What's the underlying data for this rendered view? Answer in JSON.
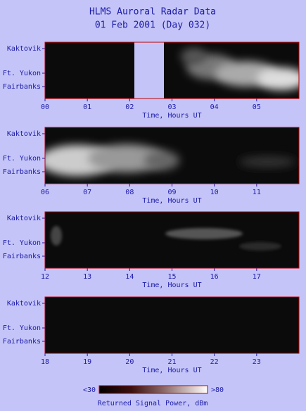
{
  "title": "HLMS Auroral Radar Data",
  "subtitle": "01 Feb 2001 (Day 032)",
  "chart_data": [
    {
      "type": "heatmap",
      "categories": [
        "Kaktovik",
        "Ft. Yukon",
        "Fairbanks"
      ],
      "x_label": "Time, Hours UT",
      "xlim": [
        0,
        6
      ],
      "xticks": [
        {
          "value": 0,
          "label": "00"
        },
        {
          "value": 1,
          "label": "01"
        },
        {
          "value": 2,
          "label": "02"
        },
        {
          "value": 3,
          "label": "03"
        },
        {
          "value": 4,
          "label": "04"
        },
        {
          "value": 5,
          "label": "05"
        }
      ]
    },
    {
      "type": "heatmap",
      "categories": [
        "Kaktovik",
        "Ft. Yukon",
        "Fairbanks"
      ],
      "x_label": "Time, Hours UT",
      "xlim": [
        6,
        12
      ],
      "xticks": [
        {
          "value": 6,
          "label": "06"
        },
        {
          "value": 7,
          "label": "07"
        },
        {
          "value": 8,
          "label": "08"
        },
        {
          "value": 9,
          "label": "09"
        },
        10,
        11
      ]
    },
    {
      "type": "heatmap",
      "categories": [
        "Kaktovik",
        "Ft. Yukon",
        "Fairbanks"
      ],
      "x_label": "Time, Hours UT",
      "xlim": [
        12,
        18
      ],
      "xticks": [
        12,
        13,
        14,
        15,
        16,
        17
      ]
    },
    {
      "type": "heatmap",
      "categories": [
        "Kaktovik",
        "Ft. Yukon",
        "Fairbanks"
      ],
      "x_label": "Time, Hours UT",
      "xlim": [
        18,
        24
      ],
      "xticks": [
        18,
        19,
        20,
        21,
        22,
        23
      ]
    }
  ],
  "colorbar": {
    "label": "Returned Signal Power, dBm",
    "min_label": "<30",
    "max_label": ">80"
  }
}
